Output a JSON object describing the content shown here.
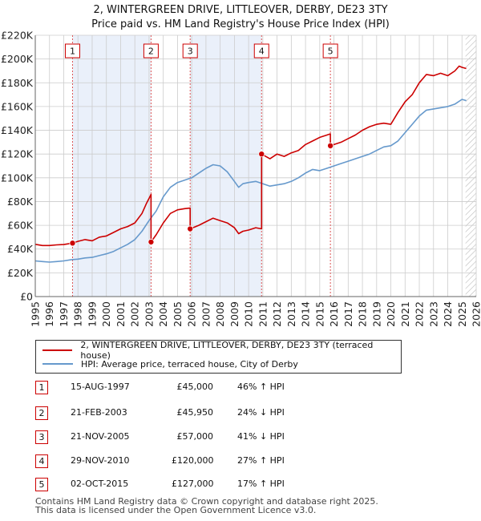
{
  "title_line1": "2, WINTERGREEN DRIVE, LITTLEOVER, DERBY, DE23 3TY",
  "title_line2": "Price paid vs. HM Land Registry's House Price Index (HPI)",
  "colors": {
    "price": "#cc0000",
    "hpi": "#6699cc",
    "grid": "#cccccc",
    "band": "#eaf0fa",
    "marker_line": "#dd5555"
  },
  "chart_data": {
    "type": "line",
    "x_range": [
      1995,
      2026
    ],
    "ylim": [
      0,
      220000
    ],
    "y_ticks": [
      0,
      20000,
      40000,
      60000,
      80000,
      100000,
      120000,
      140000,
      160000,
      180000,
      200000,
      220000
    ],
    "y_tick_labels": [
      "£0",
      "£20K",
      "£40K",
      "£60K",
      "£80K",
      "£100K",
      "£120K",
      "£140K",
      "£160K",
      "£180K",
      "£200K",
      "£220K"
    ],
    "x_ticks": [
      1995,
      1996,
      1997,
      1998,
      1999,
      2000,
      2001,
      2002,
      2003,
      2004,
      2005,
      2006,
      2007,
      2008,
      2009,
      2010,
      2011,
      2012,
      2013,
      2014,
      2015,
      2016,
      2017,
      2018,
      2019,
      2020,
      2021,
      2022,
      2023,
      2024,
      2025,
      2026
    ],
    "grid": true,
    "future_hatch_from": 2025.25,
    "series": [
      {
        "name": "2, WINTERGREEN DRIVE, LITTLEOVER, DERBY, DE23 3TY (terraced house)",
        "color": "#cc0000",
        "x": [
          1995.0,
          1995.5,
          1996.0,
          1996.5,
          1997.0,
          1997.62,
          1997.62,
          1998.0,
          1998.5,
          1999.0,
          1999.5,
          2000.0,
          2000.5,
          2001.0,
          2001.5,
          2002.0,
          2002.5,
          2002.8,
          2003.14,
          2003.14,
          2003.5,
          2004.0,
          2004.5,
          2005.0,
          2005.5,
          2005.89,
          2005.89,
          2006.5,
          2007.0,
          2007.5,
          2008.0,
          2008.5,
          2009.0,
          2009.3,
          2009.6,
          2010.0,
          2010.5,
          2010.91,
          2010.91,
          2011.5,
          2012.0,
          2012.5,
          2013.0,
          2013.5,
          2014.0,
          2014.5,
          2015.0,
          2015.5,
          2015.75,
          2015.75,
          2016.5,
          2017.0,
          2017.5,
          2018.0,
          2018.5,
          2019.0,
          2019.5,
          2020.0,
          2020.5,
          2021.0,
          2021.5,
          2022.0,
          2022.5,
          2023.0,
          2023.5,
          2024.0,
          2024.5,
          2024.8,
          2025.0,
          2025.3
        ],
        "y": [
          44000,
          43000,
          43000,
          43500,
          43800,
          45000,
          45000,
          46500,
          48000,
          47000,
          50000,
          51000,
          54000,
          57000,
          59000,
          62000,
          70000,
          78000,
          86000,
          45950,
          52000,
          62000,
          70000,
          73000,
          74000,
          74500,
          57000,
          60000,
          63000,
          66000,
          64000,
          62000,
          58000,
          53000,
          55000,
          56000,
          58000,
          57000,
          120000,
          116000,
          120000,
          118000,
          121000,
          123000,
          128000,
          131000,
          134000,
          136000,
          137000,
          127000,
          130000,
          133000,
          136000,
          140000,
          143000,
          145000,
          146000,
          145000,
          155000,
          164000,
          170000,
          180000,
          187000,
          186000,
          188000,
          186000,
          190000,
          194000,
          193000,
          192000
        ]
      },
      {
        "name": "HPI: Average price, terraced house, City of Derby",
        "color": "#6699cc",
        "x": [
          1995.0,
          1995.5,
          1996.0,
          1996.5,
          1997.0,
          1997.5,
          1998.0,
          1998.5,
          1999.0,
          1999.5,
          2000.0,
          2000.5,
          2001.0,
          2001.5,
          2002.0,
          2002.5,
          2003.0,
          2003.5,
          2004.0,
          2004.5,
          2005.0,
          2005.5,
          2006.0,
          2006.5,
          2007.0,
          2007.5,
          2008.0,
          2008.5,
          2009.0,
          2009.3,
          2009.6,
          2010.0,
          2010.5,
          2011.0,
          2011.5,
          2012.0,
          2012.5,
          2013.0,
          2013.5,
          2014.0,
          2014.5,
          2015.0,
          2015.5,
          2016.0,
          2016.5,
          2017.0,
          2017.5,
          2018.0,
          2018.5,
          2019.0,
          2019.5,
          2020.0,
          2020.5,
          2021.0,
          2021.5,
          2022.0,
          2022.5,
          2023.0,
          2023.5,
          2024.0,
          2024.5,
          2025.0,
          2025.3
        ],
        "y": [
          30000,
          29500,
          29000,
          29500,
          30000,
          31000,
          31500,
          32500,
          33000,
          34500,
          36000,
          38000,
          41000,
          44000,
          48000,
          55000,
          64000,
          72000,
          84000,
          92000,
          96000,
          98000,
          100000,
          104000,
          108000,
          111000,
          110000,
          105000,
          97000,
          92000,
          95000,
          96000,
          97000,
          95000,
          93000,
          94000,
          95000,
          97000,
          100000,
          104000,
          107000,
          106000,
          108000,
          110000,
          112000,
          114000,
          116000,
          118000,
          120000,
          123000,
          126000,
          127000,
          131000,
          138000,
          145000,
          152000,
          157000,
          158000,
          159000,
          160000,
          162000,
          166000,
          165000
        ]
      }
    ],
    "sale_markers": [
      {
        "label": "1",
        "x": 1997.62,
        "y": 45000
      },
      {
        "label": "2",
        "x": 2003.14,
        "y": 45950
      },
      {
        "label": "3",
        "x": 2005.89,
        "y": 57000
      },
      {
        "label": "4",
        "x": 2010.91,
        "y": 120000
      },
      {
        "label": "5",
        "x": 2015.75,
        "y": 127000
      }
    ]
  },
  "legend": {
    "price_label": "2, WINTERGREEN DRIVE, LITTLEOVER, DERBY, DE23 3TY (terraced house)",
    "hpi_label": "HPI: Average price, terraced house, City of Derby"
  },
  "sales": [
    {
      "num": "1",
      "date": "15-AUG-1997",
      "price": "£45,000",
      "hpi": "46% ↑ HPI"
    },
    {
      "num": "2",
      "date": "21-FEB-2003",
      "price": "£45,950",
      "hpi": "24% ↓ HPI"
    },
    {
      "num": "3",
      "date": "21-NOV-2005",
      "price": "£57,000",
      "hpi": "41% ↓ HPI"
    },
    {
      "num": "4",
      "date": "29-NOV-2010",
      "price": "£120,000",
      "hpi": "27% ↑ HPI"
    },
    {
      "num": "5",
      "date": "02-OCT-2015",
      "price": "£127,000",
      "hpi": "17% ↑ HPI"
    }
  ],
  "footer_line1": "Contains HM Land Registry data © Crown copyright and database right 2025.",
  "footer_line2": "This data is licensed under the Open Government Licence v3.0."
}
